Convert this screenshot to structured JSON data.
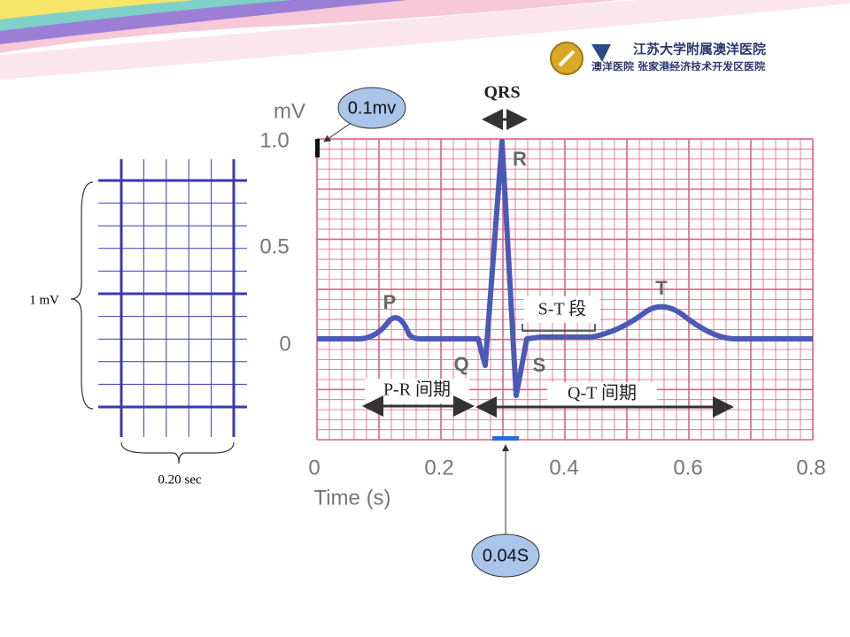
{
  "logo": {
    "name": "江苏大学附属澳洋医院",
    "subtitle": "澳洋医院  张家港经济技术开发区医院"
  },
  "grid_scale": {
    "voltage": "1 mV",
    "time": "0.20 sec"
  },
  "ecg": {
    "y_unit": "mV",
    "y_ticks": [
      "1.0",
      "0.5",
      "0"
    ],
    "x_ticks": [
      "0",
      "0.2",
      "0.4",
      "0.6",
      "0.8"
    ],
    "x_label": "Time (s)",
    "waves": {
      "p": "P",
      "q": "Q",
      "r": "R",
      "s": "S",
      "t": "T"
    },
    "intervals": {
      "qrs": "QRS",
      "st": "S-T 段",
      "pr": "P-R 间期",
      "qt": "Q-T 间期"
    }
  },
  "callouts": {
    "amplitude": "0.1mv",
    "duration": "0.04S"
  }
}
